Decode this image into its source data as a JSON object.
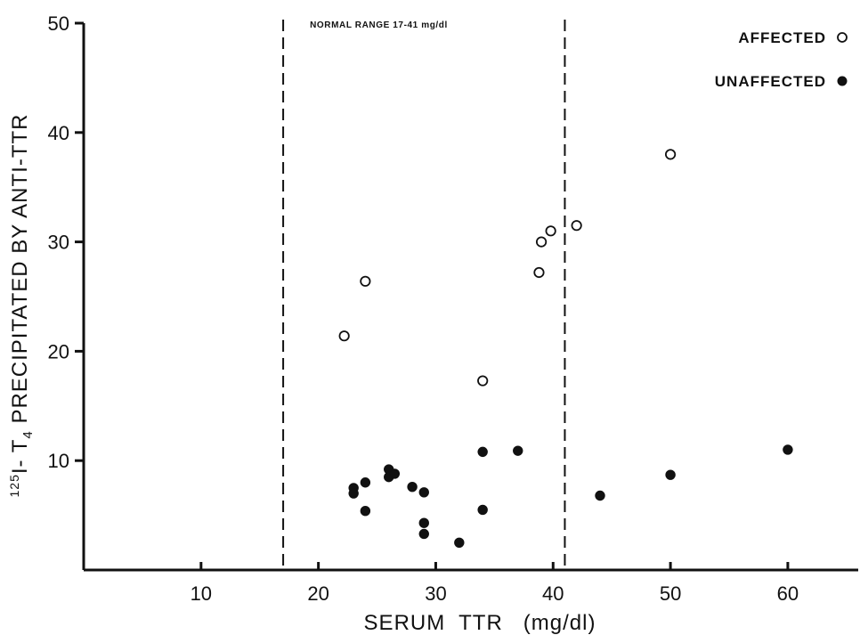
{
  "chart_data": {
    "type": "scatter",
    "title": "",
    "xlabel": "SERUM  TTR   (mg/dl)",
    "ylabel": "125I-T4 PRECIPITATED BY ANTI-TTR",
    "ylabel_parts": {
      "sup": "125",
      "pre": "I- T",
      "sub": "4",
      "post": " PRECIPITATED BY ANTI-TTR"
    },
    "xlim": [
      0,
      66
    ],
    "ylim": [
      0,
      50
    ],
    "xticks": [
      10,
      20,
      30,
      40,
      50,
      60
    ],
    "xtick_labels": [
      "10",
      "20",
      "30",
      "40",
      "50",
      "60"
    ],
    "yticks": [
      10,
      20,
      30,
      40,
      50
    ],
    "ytick_labels": [
      "10",
      "20",
      "30",
      "40",
      "50"
    ],
    "grid": false,
    "legend_position": "top-right",
    "reference_lines": {
      "x": [
        17,
        41
      ],
      "label": "NORMAL RANGE 17-41 mg/dl"
    },
    "series": [
      {
        "name": "AFFECTED",
        "marker": "open-circle",
        "points": [
          [
            22.2,
            21.4
          ],
          [
            24,
            26.4
          ],
          [
            34,
            17.3
          ],
          [
            38.8,
            27.2
          ],
          [
            39,
            30
          ],
          [
            39.8,
            31
          ],
          [
            42,
            31.5
          ],
          [
            50,
            38
          ]
        ]
      },
      {
        "name": "UNAFFECTED",
        "marker": "filled-circle",
        "points": [
          [
            23,
            7.5
          ],
          [
            23,
            7
          ],
          [
            24,
            8
          ],
          [
            24,
            5.4
          ],
          [
            26,
            9.2
          ],
          [
            26,
            8.5
          ],
          [
            26.5,
            8.8
          ],
          [
            28,
            7.6
          ],
          [
            29,
            7.1
          ],
          [
            29,
            4.3
          ],
          [
            29,
            3.3
          ],
          [
            32,
            2.5
          ],
          [
            34,
            10.8
          ],
          [
            34,
            5.5
          ],
          [
            37,
            10.9
          ],
          [
            44,
            6.8
          ],
          [
            50,
            8.7
          ],
          [
            60,
            11
          ]
        ]
      }
    ]
  }
}
